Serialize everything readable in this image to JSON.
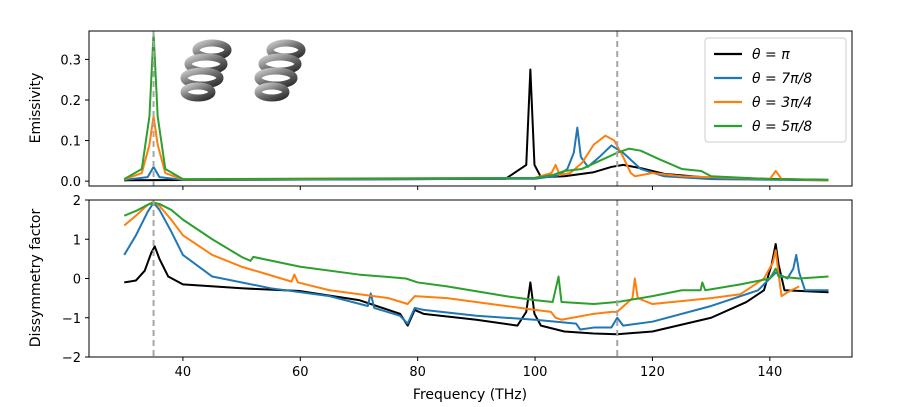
{
  "chart_data": [
    {
      "type": "line",
      "ylabel": "Emissivity",
      "xlim": [
        24,
        154
      ],
      "ylim": [
        -0.012,
        0.37
      ],
      "yticks": [
        0.0,
        0.1,
        0.2,
        0.3
      ],
      "ytick_labels": [
        "0.0",
        "0.1",
        "0.2",
        "0.3"
      ],
      "vlines": [
        35,
        114
      ],
      "legend_position": "top-right",
      "inset_description": "two helix structures",
      "series": [
        {
          "name": "θ = π",
          "color": "#000000",
          "points": [
            [
              30,
              0.002
            ],
            [
              95,
              0.006
            ],
            [
              98.5,
              0.04
            ],
            [
              99.2,
              0.275
            ],
            [
              99.9,
              0.04
            ],
            [
              101,
              0.01
            ],
            [
              105,
              0.012
            ],
            [
              110,
              0.022
            ],
            [
              113,
              0.035
            ],
            [
              115,
              0.04
            ],
            [
              118,
              0.032
            ],
            [
              122,
              0.018
            ],
            [
              130,
              0.008
            ],
            [
              150,
              0.003
            ]
          ]
        },
        {
          "name": "θ = 7π/8",
          "color": "#1f77b4",
          "points": [
            [
              30,
              0.003
            ],
            [
              34,
              0.01
            ],
            [
              35,
              0.035
            ],
            [
              36,
              0.01
            ],
            [
              40,
              0.003
            ],
            [
              100,
              0.006
            ],
            [
              104,
              0.014
            ],
            [
              105.5,
              0.03
            ],
            [
              106.6,
              0.07
            ],
            [
              107.2,
              0.132
            ],
            [
              107.8,
              0.06
            ],
            [
              109,
              0.035
            ],
            [
              111,
              0.06
            ],
            [
              113,
              0.088
            ],
            [
              115,
              0.07
            ],
            [
              118,
              0.03
            ],
            [
              122,
              0.012
            ],
            [
              130,
              0.005
            ],
            [
              150,
              0.002
            ]
          ]
        },
        {
          "name": "θ = 3π/4",
          "color": "#ff7f0e",
          "points": [
            [
              30,
              0.004
            ],
            [
              33,
              0.02
            ],
            [
              34.3,
              0.09
            ],
            [
              35,
              0.16
            ],
            [
              35.7,
              0.09
            ],
            [
              37,
              0.02
            ],
            [
              40,
              0.004
            ],
            [
              100,
              0.008
            ],
            [
              102.8,
              0.02
            ],
            [
              103.5,
              0.04
            ],
            [
              104.2,
              0.015
            ],
            [
              106,
              0.02
            ],
            [
              108,
              0.045
            ],
            [
              110,
              0.09
            ],
            [
              112,
              0.112
            ],
            [
              113.5,
              0.1
            ],
            [
              115,
              0.06
            ],
            [
              116.3,
              0.02
            ],
            [
              117,
              0.012
            ],
            [
              120,
              0.02
            ],
            [
              125,
              0.012
            ],
            [
              140,
              0.005
            ],
            [
              141,
              0.025
            ],
            [
              142,
              0.005
            ],
            [
              150,
              0.002
            ]
          ]
        },
        {
          "name": "θ = 5π/8",
          "color": "#2ca02c",
          "points": [
            [
              30,
              0.005
            ],
            [
              33,
              0.03
            ],
            [
              34.3,
              0.16
            ],
            [
              35,
              0.365
            ],
            [
              35.7,
              0.16
            ],
            [
              37,
              0.03
            ],
            [
              40,
              0.005
            ],
            [
              100,
              0.008
            ],
            [
              103,
              0.015
            ],
            [
              105,
              0.025
            ],
            [
              108,
              0.03
            ],
            [
              111,
              0.05
            ],
            [
              114,
              0.07
            ],
            [
              116,
              0.08
            ],
            [
              118,
              0.075
            ],
            [
              121,
              0.055
            ],
            [
              125,
              0.03
            ],
            [
              128.3,
              0.025
            ],
            [
              130,
              0.012
            ],
            [
              140,
              0.005
            ],
            [
              150,
              0.003
            ]
          ]
        }
      ]
    },
    {
      "type": "line",
      "xlabel": "Frequency (THz)",
      "ylabel": "Dissymmetry factor",
      "xlim": [
        24,
        154
      ],
      "ylim": [
        -2,
        2
      ],
      "xticks": [
        40,
        60,
        80,
        100,
        120,
        140
      ],
      "xtick_labels": [
        "40",
        "60",
        "80",
        "100",
        "120",
        "140"
      ],
      "yticks": [
        -2,
        -1,
        0,
        1,
        2
      ],
      "ytick_labels": [
        "−2",
        "−1",
        "0",
        "1",
        "2"
      ],
      "vlines": [
        35,
        114
      ],
      "series": [
        {
          "name": "θ = π",
          "color": "#000000",
          "points": [
            [
              30,
              -0.1
            ],
            [
              32,
              -0.05
            ],
            [
              33.5,
              0.2
            ],
            [
              34.6,
              0.65
            ],
            [
              35.2,
              0.82
            ],
            [
              36,
              0.5
            ],
            [
              37.5,
              0.05
            ],
            [
              40,
              -0.15
            ],
            [
              50,
              -0.25
            ],
            [
              60,
              -0.32
            ],
            [
              70,
              -0.55
            ],
            [
              77,
              -0.9
            ],
            [
              78.3,
              -1.2
            ],
            [
              79.5,
              -0.8
            ],
            [
              81,
              -0.9
            ],
            [
              90,
              -1.05
            ],
            [
              97,
              -1.2
            ],
            [
              98.5,
              -0.85
            ],
            [
              99.2,
              -0.1
            ],
            [
              99.9,
              -0.9
            ],
            [
              101,
              -1.2
            ],
            [
              105,
              -1.35
            ],
            [
              110,
              -1.4
            ],
            [
              114,
              -1.42
            ],
            [
              120,
              -1.35
            ],
            [
              130,
              -1.0
            ],
            [
              136,
              -0.6
            ],
            [
              139,
              -0.3
            ],
            [
              140.3,
              0.35
            ],
            [
              141,
              0.88
            ],
            [
              141.5,
              0.35
            ],
            [
              142.5,
              -0.3
            ],
            [
              150,
              -0.35
            ]
          ]
        },
        {
          "name": "θ = 7π/8",
          "color": "#1f77b4",
          "points": [
            [
              30,
              0.6
            ],
            [
              32,
              1.1
            ],
            [
              34,
              1.7
            ],
            [
              35,
              1.93
            ],
            [
              36,
              1.75
            ],
            [
              38,
              1.2
            ],
            [
              40,
              0.6
            ],
            [
              45,
              0.05
            ],
            [
              55,
              -0.25
            ],
            [
              65,
              -0.45
            ],
            [
              71.5,
              -0.7
            ],
            [
              72,
              -0.38
            ],
            [
              72.6,
              -0.75
            ],
            [
              77,
              -0.95
            ],
            [
              78.3,
              -1.15
            ],
            [
              79.5,
              -0.75
            ],
            [
              81,
              -0.8
            ],
            [
              90,
              -0.95
            ],
            [
              100,
              -1.05
            ],
            [
              107,
              -1.15
            ],
            [
              107.7,
              -1.3
            ],
            [
              110,
              -1.25
            ],
            [
              113,
              -1.25
            ],
            [
              114,
              -1.0
            ],
            [
              115,
              -1.2
            ],
            [
              120,
              -1.1
            ],
            [
              130,
              -0.7
            ],
            [
              138,
              -0.3
            ],
            [
              141,
              0.15
            ],
            [
              143,
              0.0
            ],
            [
              144,
              0.25
            ],
            [
              144.5,
              0.6
            ],
            [
              145,
              0.15
            ],
            [
              146,
              -0.3
            ],
            [
              150,
              -0.3
            ]
          ]
        },
        {
          "name": "θ = 3π/4",
          "color": "#ff7f0e",
          "points": [
            [
              30,
              1.35
            ],
            [
              32,
              1.6
            ],
            [
              34,
              1.88
            ],
            [
              35,
              1.95
            ],
            [
              36,
              1.85
            ],
            [
              38,
              1.5
            ],
            [
              40,
              1.1
            ],
            [
              45,
              0.6
            ],
            [
              50,
              0.3
            ],
            [
              55,
              0.08
            ],
            [
              58.5,
              -0.08
            ],
            [
              59,
              0.1
            ],
            [
              59.6,
              -0.1
            ],
            [
              65,
              -0.3
            ],
            [
              75,
              -0.5
            ],
            [
              78.3,
              -0.65
            ],
            [
              79.5,
              -0.45
            ],
            [
              85,
              -0.5
            ],
            [
              95,
              -0.7
            ],
            [
              100,
              -0.8
            ],
            [
              102.7,
              -0.85
            ],
            [
              103.5,
              -1.0
            ],
            [
              104.5,
              -1.05
            ],
            [
              110,
              -0.9
            ],
            [
              113,
              -0.85
            ],
            [
              114,
              -0.85
            ],
            [
              116.6,
              -0.5
            ],
            [
              117,
              0.0
            ],
            [
              117.5,
              -0.5
            ],
            [
              120,
              -0.65
            ],
            [
              130,
              -0.5
            ],
            [
              135,
              -0.4
            ],
            [
              139,
              0.0
            ],
            [
              140.5,
              0.4
            ],
            [
              141,
              0.72
            ],
            [
              141.5,
              0.1
            ],
            [
              142,
              -0.45
            ],
            [
              143,
              -0.35
            ],
            [
              145,
              -0.2
            ]
          ]
        },
        {
          "name": "θ = 5π/8",
          "color": "#2ca02c",
          "points": [
            [
              30,
              1.6
            ],
            [
              32,
              1.72
            ],
            [
              34,
              1.88
            ],
            [
              35,
              1.93
            ],
            [
              36,
              1.9
            ],
            [
              38,
              1.75
            ],
            [
              40,
              1.5
            ],
            [
              45,
              1.0
            ],
            [
              50,
              0.55
            ],
            [
              51.5,
              0.45
            ],
            [
              52,
              0.55
            ],
            [
              60,
              0.3
            ],
            [
              70,
              0.1
            ],
            [
              78,
              0.0
            ],
            [
              80,
              -0.1
            ],
            [
              85,
              -0.2
            ],
            [
              95,
              -0.45
            ],
            [
              100,
              -0.55
            ],
            [
              103,
              -0.6
            ],
            [
              104,
              0.05
            ],
            [
              104.5,
              -0.6
            ],
            [
              110,
              -0.65
            ],
            [
              114,
              -0.6
            ],
            [
              120,
              -0.45
            ],
            [
              125,
              -0.3
            ],
            [
              128.2,
              -0.3
            ],
            [
              128.5,
              -0.1
            ],
            [
              129,
              -0.3
            ],
            [
              135,
              -0.15
            ],
            [
              140,
              0.0
            ],
            [
              141,
              0.25
            ],
            [
              141.5,
              0.05
            ],
            [
              145,
              0.0
            ],
            [
              150,
              0.05
            ]
          ]
        }
      ]
    }
  ],
  "legend": [
    {
      "label": "θ = π",
      "color": "#000000"
    },
    {
      "label": "θ = 7π/8",
      "color": "#1f77b4"
    },
    {
      "label": "θ = 3π/4",
      "color": "#ff7f0e"
    },
    {
      "label": "θ = 5π/8",
      "color": "#2ca02c"
    }
  ],
  "text": {
    "top_ylabel": "Emissivity",
    "bottom_ylabel": "Dissymmetry factor",
    "xlabel": "Frequency (THz)"
  }
}
